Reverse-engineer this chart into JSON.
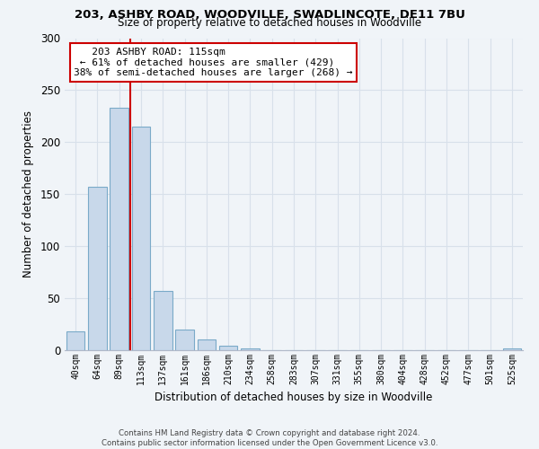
{
  "title": "203, ASHBY ROAD, WOODVILLE, SWADLINCOTE, DE11 7BU",
  "subtitle": "Size of property relative to detached houses in Woodville",
  "xlabel": "Distribution of detached houses by size in Woodville",
  "ylabel": "Number of detached properties",
  "bar_labels": [
    "40sqm",
    "64sqm",
    "89sqm",
    "113sqm",
    "137sqm",
    "161sqm",
    "186sqm",
    "210sqm",
    "234sqm",
    "258sqm",
    "283sqm",
    "307sqm",
    "331sqm",
    "355sqm",
    "380sqm",
    "404sqm",
    "428sqm",
    "452sqm",
    "477sqm",
    "501sqm",
    "525sqm"
  ],
  "bar_values": [
    18,
    157,
    233,
    215,
    57,
    20,
    10,
    4,
    2,
    0,
    0,
    0,
    0,
    0,
    0,
    0,
    0,
    0,
    0,
    0,
    2
  ],
  "bar_color": "#c8d8ea",
  "bar_edge_color": "#7aaac8",
  "vline_x": 2.5,
  "vline_color": "#cc0000",
  "annotation_title": "203 ASHBY ROAD: 115sqm",
  "annotation_line1": "← 61% of detached houses are smaller (429)",
  "annotation_line2": "38% of semi-detached houses are larger (268) →",
  "annotation_box_color": "#ffffff",
  "annotation_box_edge": "#cc0000",
  "ylim": [
    0,
    300
  ],
  "yticks": [
    0,
    50,
    100,
    150,
    200,
    250,
    300
  ],
  "footer1": "Contains HM Land Registry data © Crown copyright and database right 2024.",
  "footer2": "Contains public sector information licensed under the Open Government Licence v3.0.",
  "bg_color": "#f0f4f8",
  "grid_color": "#d8e0ea"
}
